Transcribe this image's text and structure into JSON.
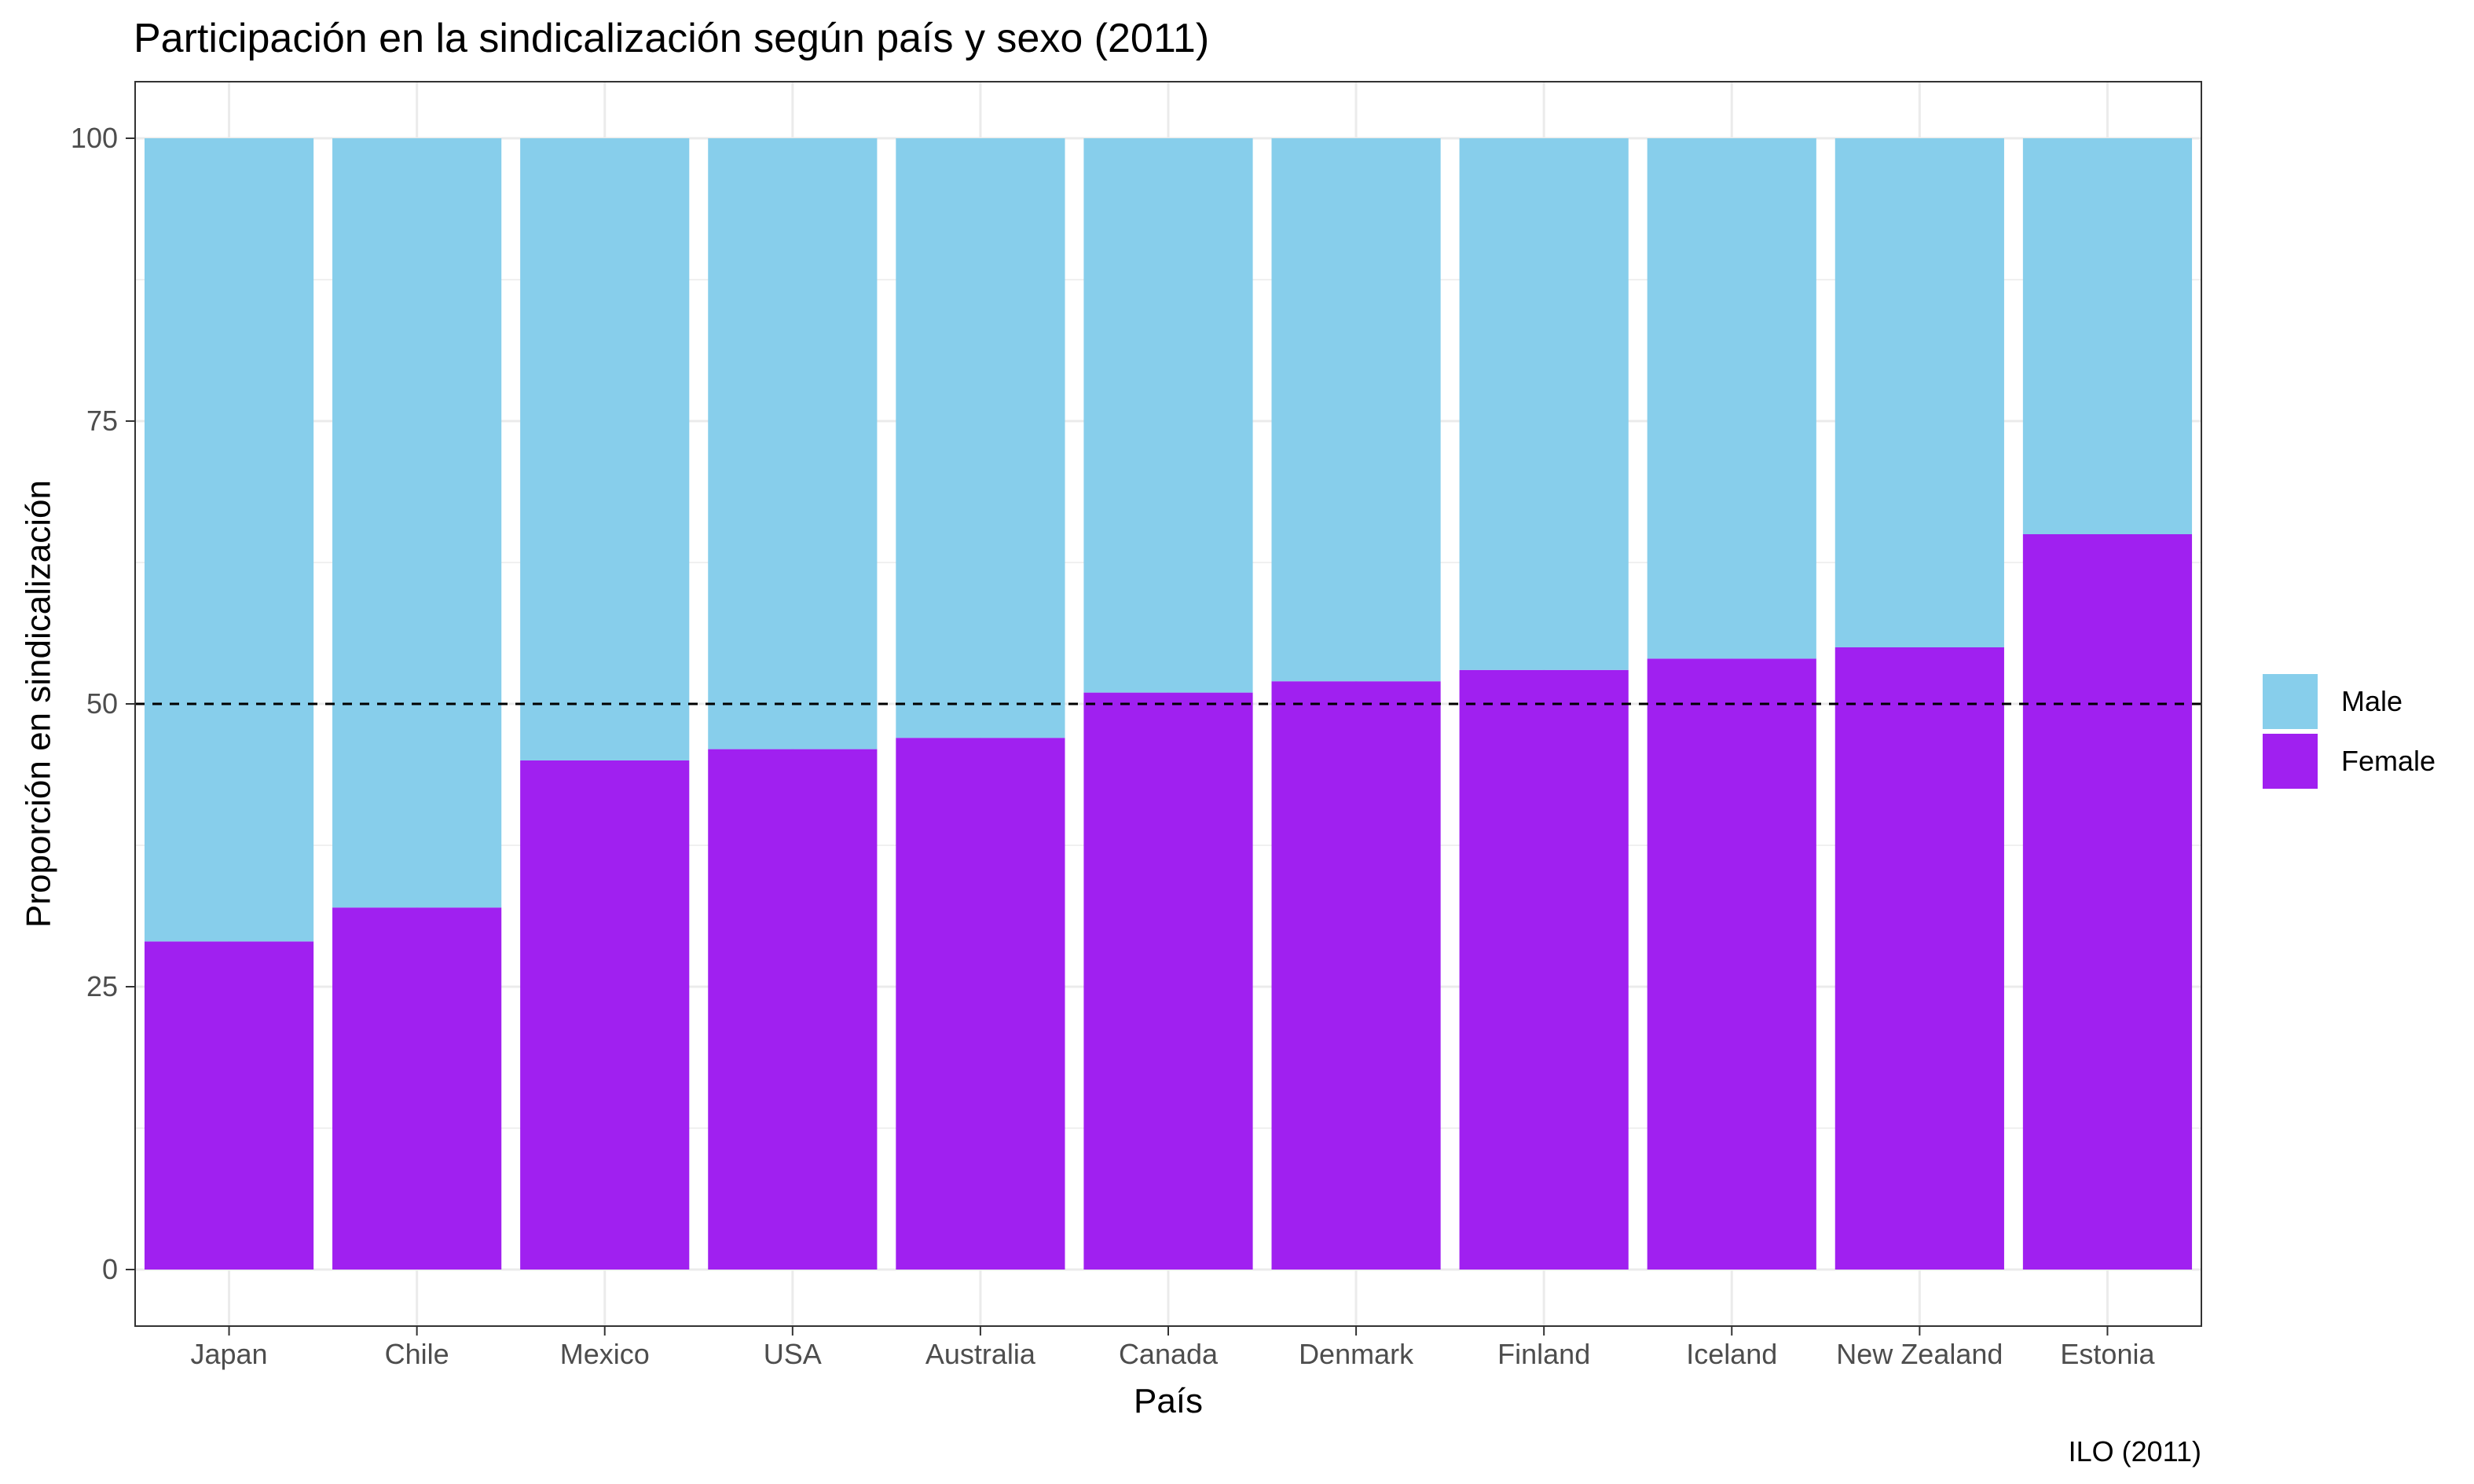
{
  "chart_data": {
    "type": "bar",
    "stacked": true,
    "title": "Participación en la sindicalización según país y sexo (2011)",
    "xlabel": "País",
    "ylabel": "Proporción en sindicalización",
    "caption": "ILO (2011)",
    "categories": [
      "Japan",
      "Chile",
      "Mexico",
      "USA",
      "Australia",
      "Canada",
      "Denmark",
      "Finland",
      "Iceland",
      "New Zealand",
      "Estonia"
    ],
    "series": [
      {
        "name": "Female",
        "color": "#a020f0",
        "values": [
          29,
          32,
          45,
          46,
          47,
          51,
          52,
          53,
          54,
          55,
          65
        ]
      },
      {
        "name": "Male",
        "color": "#87ceeb",
        "values": [
          71,
          68,
          55,
          54,
          53,
          49,
          48,
          47,
          46,
          45,
          35
        ]
      }
    ],
    "legend_order": [
      "Male",
      "Female"
    ],
    "yticks": [
      0,
      25,
      50,
      75,
      100
    ],
    "ylim": [
      -5,
      105
    ],
    "reference_line": {
      "y": 50,
      "style": "dashed",
      "color": "#000000"
    },
    "grid": true,
    "legend_position": "right",
    "panel_border_color": "#333333",
    "grid_color": "#ebebeb"
  }
}
